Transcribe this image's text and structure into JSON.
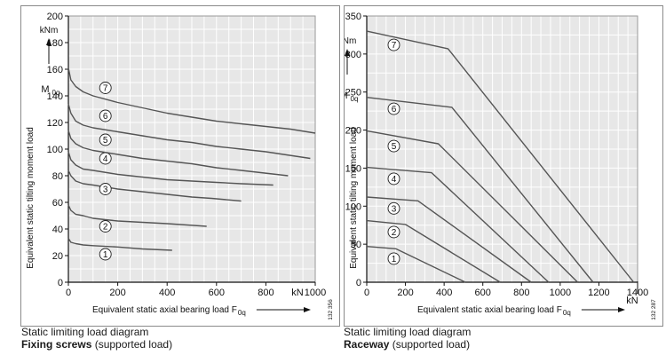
{
  "chart_data": [
    {
      "type": "line",
      "title": "Static limiting load diagram",
      "subtitle_bold": "Fixing screws",
      "subtitle_rest": " (supported load)",
      "xlabel": "Equivalent static axial bearing load F",
      "xlabel_sub": "0q",
      "x_unit": "kN",
      "ylabel": "Equivalent static tilting moment load",
      "y_symbol": "M",
      "y_symbol_sub": "0q",
      "y_unit": "kNm",
      "code": "132 356",
      "xlim": [
        0,
        1000
      ],
      "ylim": [
        0,
        200
      ],
      "x_ticks": [
        0,
        200,
        400,
        600,
        800,
        1000
      ],
      "x_tick_labels": [
        "0",
        "200",
        "400",
        "600",
        "800",
        "1000"
      ],
      "y_ticks": [
        0,
        20,
        40,
        60,
        80,
        100,
        120,
        140,
        160,
        180,
        200
      ],
      "y_tick_labels": [
        "0",
        "20",
        "40",
        "60",
        "80",
        "100",
        "120",
        "140",
        "160",
        "180",
        "200"
      ],
      "grid": true,
      "series": [
        {
          "label": "1",
          "label_pos": [
            150,
            21
          ],
          "x": [
            0,
            10,
            30,
            60,
            100,
            200,
            300,
            420
          ],
          "y": [
            33,
            30,
            29,
            28,
            27.5,
            26.5,
            25,
            24
          ]
        },
        {
          "label": "2",
          "label_pos": [
            150,
            42
          ],
          "x": [
            0,
            10,
            30,
            60,
            100,
            200,
            300,
            400,
            560
          ],
          "y": [
            58,
            54,
            51,
            50,
            48,
            46,
            45,
            44,
            42
          ]
        },
        {
          "label": "3",
          "label_pos": [
            150,
            70
          ],
          "x": [
            0,
            10,
            30,
            60,
            100,
            200,
            300,
            400,
            500,
            580,
            700
          ],
          "y": [
            84,
            80,
            76,
            74,
            73,
            70,
            68,
            66,
            64,
            63,
            61
          ]
        },
        {
          "label": "4",
          "label_pos": [
            150,
            93
          ],
          "x": [
            0,
            10,
            30,
            60,
            100,
            200,
            300,
            400,
            500,
            600,
            700,
            830
          ],
          "y": [
            98,
            92,
            88,
            85,
            84,
            81,
            79,
            77,
            76,
            75,
            74,
            73
          ]
        },
        {
          "label": "5",
          "label_pos": [
            150,
            107
          ],
          "x": [
            0,
            10,
            30,
            60,
            100,
            200,
            300,
            400,
            500,
            600,
            700,
            890
          ],
          "y": [
            114,
            108,
            104,
            101,
            99,
            96,
            93,
            91,
            89,
            86,
            84,
            80
          ]
        },
        {
          "label": "6",
          "label_pos": [
            150,
            125
          ],
          "x": [
            0,
            10,
            30,
            60,
            100,
            200,
            300,
            400,
            500,
            600,
            700,
            800,
            980
          ],
          "y": [
            134,
            127,
            121,
            118,
            116,
            113,
            110,
            107,
            105,
            102,
            100,
            98,
            93
          ]
        },
        {
          "label": "7",
          "label_pos": [
            150,
            146
          ],
          "x": [
            0,
            10,
            30,
            60,
            100,
            200,
            300,
            400,
            500,
            600,
            700,
            800,
            900,
            1000
          ],
          "y": [
            161,
            152,
            147,
            143,
            140,
            135,
            131,
            127,
            124,
            121,
            119,
            117,
            115,
            112
          ]
        }
      ]
    },
    {
      "type": "line",
      "title": "Static limiting load diagram",
      "subtitle_bold": "Raceway",
      "subtitle_rest": " (supported load)",
      "xlabel": "Equivalent static axial bearing load F",
      "xlabel_sub": "0q",
      "x_unit": "kN",
      "ylabel": "Equivalent static tilting moment load",
      "y_symbol": "M",
      "y_symbol_sub": "0q",
      "y_unit": "kNm",
      "code": "132 287",
      "xlim": [
        0,
        1400
      ],
      "ylim": [
        0,
        350
      ],
      "x_ticks": [
        0,
        200,
        400,
        600,
        800,
        1000,
        1200,
        1400
      ],
      "x_tick_labels": [
        "0",
        "200",
        "400",
        "600",
        "800",
        "1000",
        "1200",
        "1400"
      ],
      "y_ticks": [
        0,
        50,
        100,
        150,
        200,
        250,
        300,
        350
      ],
      "y_tick_labels": [
        "0",
        "50",
        "100",
        "150",
        "200",
        "250",
        "300",
        "350"
      ],
      "grid": true,
      "series": [
        {
          "label": "1",
          "label_pos": [
            140,
            31
          ],
          "x": [
            0,
            150,
            510
          ],
          "y": [
            47,
            44,
            0
          ]
        },
        {
          "label": "2",
          "label_pos": [
            140,
            66
          ],
          "x": [
            0,
            200,
            690
          ],
          "y": [
            81,
            76,
            0
          ]
        },
        {
          "label": "3",
          "label_pos": [
            140,
            97
          ],
          "x": [
            0,
            265,
            850
          ],
          "y": [
            112,
            107,
            0
          ]
        },
        {
          "label": "4",
          "label_pos": [
            140,
            136
          ],
          "x": [
            0,
            335,
            940
          ],
          "y": [
            151,
            144,
            0
          ]
        },
        {
          "label": "5",
          "label_pos": [
            140,
            179
          ],
          "x": [
            0,
            370,
            1090
          ],
          "y": [
            199,
            182,
            0
          ]
        },
        {
          "label": "6",
          "label_pos": [
            140,
            228
          ],
          "x": [
            0,
            440,
            1170
          ],
          "y": [
            243,
            230,
            0
          ]
        },
        {
          "label": "7",
          "label_pos": [
            140,
            312
          ],
          "x": [
            0,
            420,
            1380
          ],
          "y": [
            330,
            307,
            0
          ]
        }
      ]
    }
  ]
}
